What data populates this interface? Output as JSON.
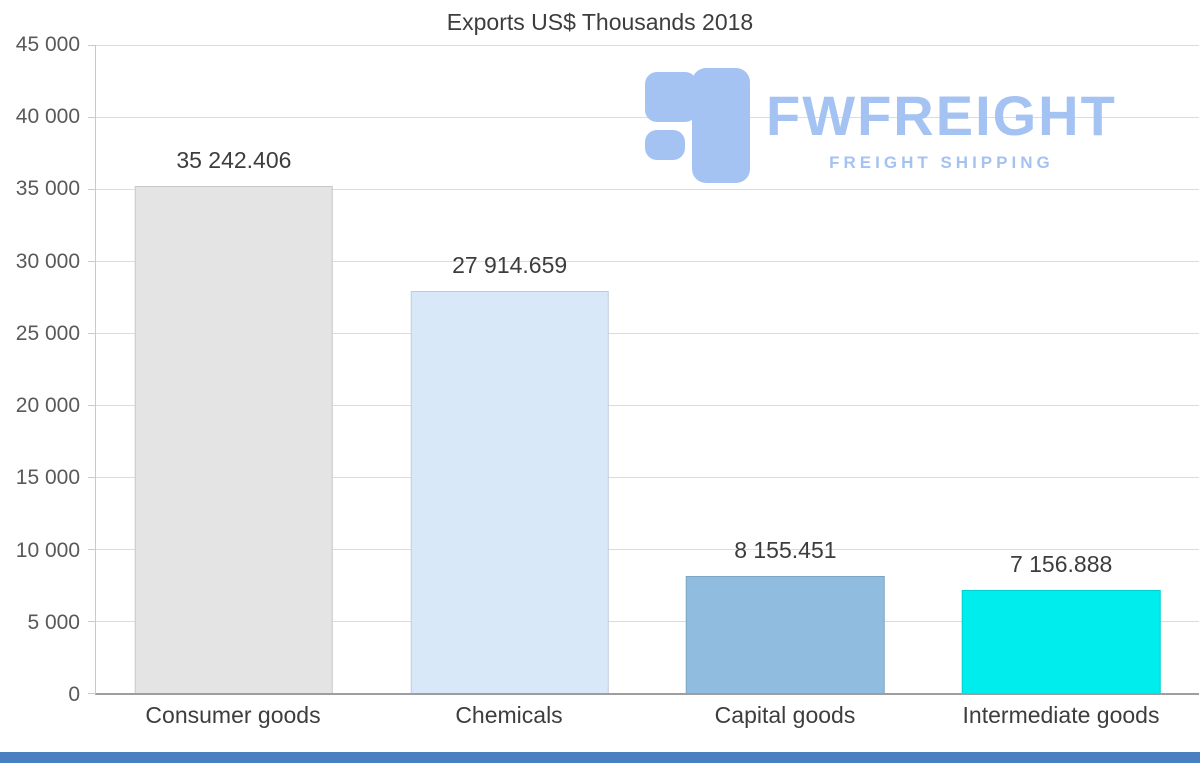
{
  "chart_data": {
    "type": "bar",
    "title": "Exports US$ Thousands 2018",
    "categories": [
      "Consumer goods",
      "Chemicals",
      "Capital goods",
      "Intermediate goods"
    ],
    "values": [
      35242.406,
      27914.659,
      8155.451,
      7156.888
    ],
    "value_labels": [
      "35 242.406",
      "27 914.659",
      "8 155.451",
      "7 156.888"
    ],
    "bar_colors": [
      "#e4e4e4",
      "#d9e8f8",
      "#8fbcdf",
      "#00eded"
    ],
    "xlabel": "",
    "ylabel": "",
    "ylim": [
      0,
      45000
    ],
    "y_tick_step": 5000,
    "y_tick_labels": [
      "0",
      "5 000",
      "10 000",
      "15 000",
      "20 000",
      "25 000",
      "30 000",
      "35 000",
      "40 000",
      "45 000"
    ],
    "grid": true,
    "legend": "none"
  },
  "watermark": {
    "brand": "FWFREIGHT",
    "tagline": "FREIGHT SHIPPING",
    "color": "#a4c2f2"
  },
  "footer": {
    "bar_color": "#4a7fc1"
  }
}
